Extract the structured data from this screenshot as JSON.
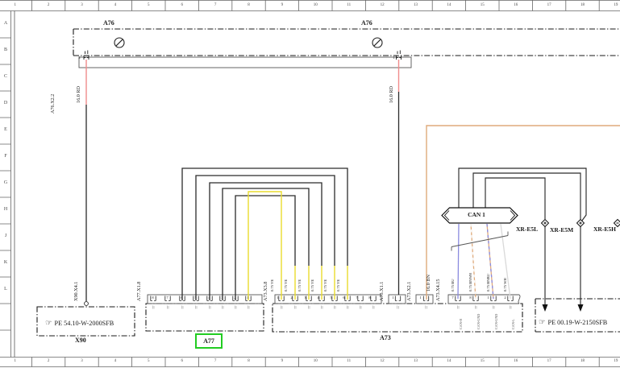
{
  "frame": {
    "columns": [
      "1",
      "2",
      "3",
      "4",
      "5",
      "6",
      "7",
      "8",
      "9",
      "10",
      "11",
      "12",
      "13",
      "14",
      "15",
      "16",
      "17",
      "18",
      "19"
    ],
    "rows": [
      "A",
      "B",
      "C",
      "D",
      "E",
      "F",
      "G",
      "H",
      "J",
      "K",
      "L"
    ]
  },
  "a76": {
    "label": "A76",
    "label_2": "A76",
    "connector": "A76.X2.2",
    "pin_left": "2",
    "pin_right": "1"
  },
  "wires": {
    "red_left": "16.0 RD",
    "red_right": "16.0 RD"
  },
  "x90": {
    "label": "X90",
    "connector": "X90.X4.1",
    "doc_ref": "PE 54.10-W-2000SFB",
    "icon": "pointing-hand"
  },
  "a77": {
    "label": "A77",
    "connector": "A77.X1.8",
    "pins": [
      "8",
      "7",
      "6",
      "5",
      "4",
      "3",
      "2",
      "1"
    ]
  },
  "a73": {
    "label": "A73",
    "x3": {
      "label": "A73.X3.8",
      "pins": [
        "1",
        "2",
        "3",
        "4",
        "5",
        "6",
        "7",
        "8"
      ],
      "wire_label": "0.75 YE"
    },
    "x1": {
      "label": "A73.X1.1",
      "pin": "1"
    },
    "x2": {
      "label": "A73.X2.1",
      "pin": "1",
      "wire_label": "16.0 BN"
    },
    "x4": {
      "label": "A73.X4.15",
      "pins": [
        "7",
        "8",
        "1",
        "2"
      ],
      "wire_labels": [
        "0.75 BU",
        "0.75 BNWH",
        "0.75 BNBU",
        "0.75 WH"
      ],
      "signal_labels": [
        "CAN-H",
        "CAN-GND",
        "CAN-GND",
        "CAN-L"
      ]
    }
  },
  "can": {
    "label": "CAN 1"
  },
  "junctions": [
    "XR-E5L",
    "XR-E5M",
    "XR-E5H"
  ],
  "pe_right": {
    "doc_ref": "PE 00.19-W-2150SFB",
    "icon": "pointing-hand"
  },
  "colors": {
    "red": "#f08b8b",
    "yellow": "#e9dc2e",
    "orange_brown": "#dfaa7b",
    "blue": "#8b8bdf",
    "white_wire": "#d9d9d9",
    "line": "#2b2b2b",
    "highlight_green": "#22cc22"
  }
}
